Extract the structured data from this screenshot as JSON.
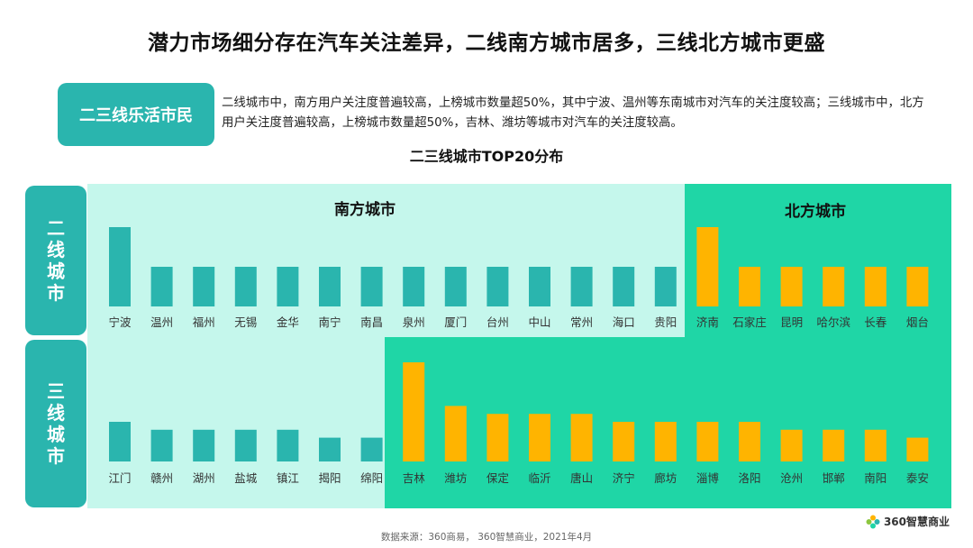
{
  "title": "潜力市场细分存在汽车关注差异，二线南方城市居多，三线北方城市更盛",
  "tag_label": "二三线乐活市民",
  "description": "二线城市中，南方用户关注度普遍较高，上榜城市数量超50%，其中宁波、温州等东南城市对汽车的关注度较高；三线城市中，北方用户关注度普遍较高，上榜城市数量超50%，吉林、潍坊等城市对汽车的关注度较高。",
  "chart_subtitle": "二三线城市TOP20分布",
  "colors": {
    "teal_bar": "#2ab5ae",
    "orange_bar": "#ffb400",
    "south_bg": "#c5f7ec",
    "north_bg": "#1fd6a6",
    "label_bg": "#2ab5ae"
  },
  "row_labels": {
    "tier2": "二线城市",
    "tier3": "三线城市"
  },
  "region_labels": {
    "south": "南方城市",
    "north": "北方城市"
  },
  "chart_data": {
    "type": "bar",
    "title": "二三线城市TOP20分布",
    "xlabel": "",
    "ylabel": "",
    "ylim": [
      0,
      3
    ],
    "grid": false,
    "rows": [
      {
        "name": "二线城市",
        "south": {
          "categories": [
            "宁波",
            "温州",
            "福州",
            "无锡",
            "金华",
            "南宁",
            "南昌",
            "泉州",
            "厦门",
            "台州",
            "中山",
            "常州",
            "海口",
            "贵阳"
          ],
          "values": [
            2,
            1,
            1,
            1,
            1,
            1,
            1,
            1,
            1,
            1,
            1,
            1,
            1,
            1
          ]
        },
        "north": {
          "categories": [
            "济南",
            "石家庄",
            "昆明",
            "哈尔滨",
            "长春",
            "烟台"
          ],
          "values": [
            2,
            1,
            1,
            1,
            1,
            1
          ]
        }
      },
      {
        "name": "三线城市",
        "south": {
          "categories": [
            "江门",
            "赣州",
            "湖州",
            "盐城",
            "镇江",
            "揭阳",
            "绵阳"
          ],
          "values": [
            1.0,
            0.8,
            0.8,
            0.8,
            0.8,
            0.6,
            0.6
          ]
        },
        "north": {
          "categories": [
            "吉林",
            "潍坊",
            "保定",
            "临沂",
            "唐山",
            "济宁",
            "廊坊",
            "淄博",
            "洛阳",
            "沧州",
            "邯郸",
            "南阳",
            "泰安"
          ],
          "values": [
            2.5,
            1.4,
            1.2,
            1.2,
            1.2,
            1.0,
            1.0,
            1.0,
            1.0,
            0.8,
            0.8,
            0.8,
            0.6
          ]
        }
      }
    ]
  },
  "source": "数据来源：360商易， 360智慧商业，2021年4月",
  "brand": "360智慧商业",
  "brand_icon": "flower-logo-icon"
}
